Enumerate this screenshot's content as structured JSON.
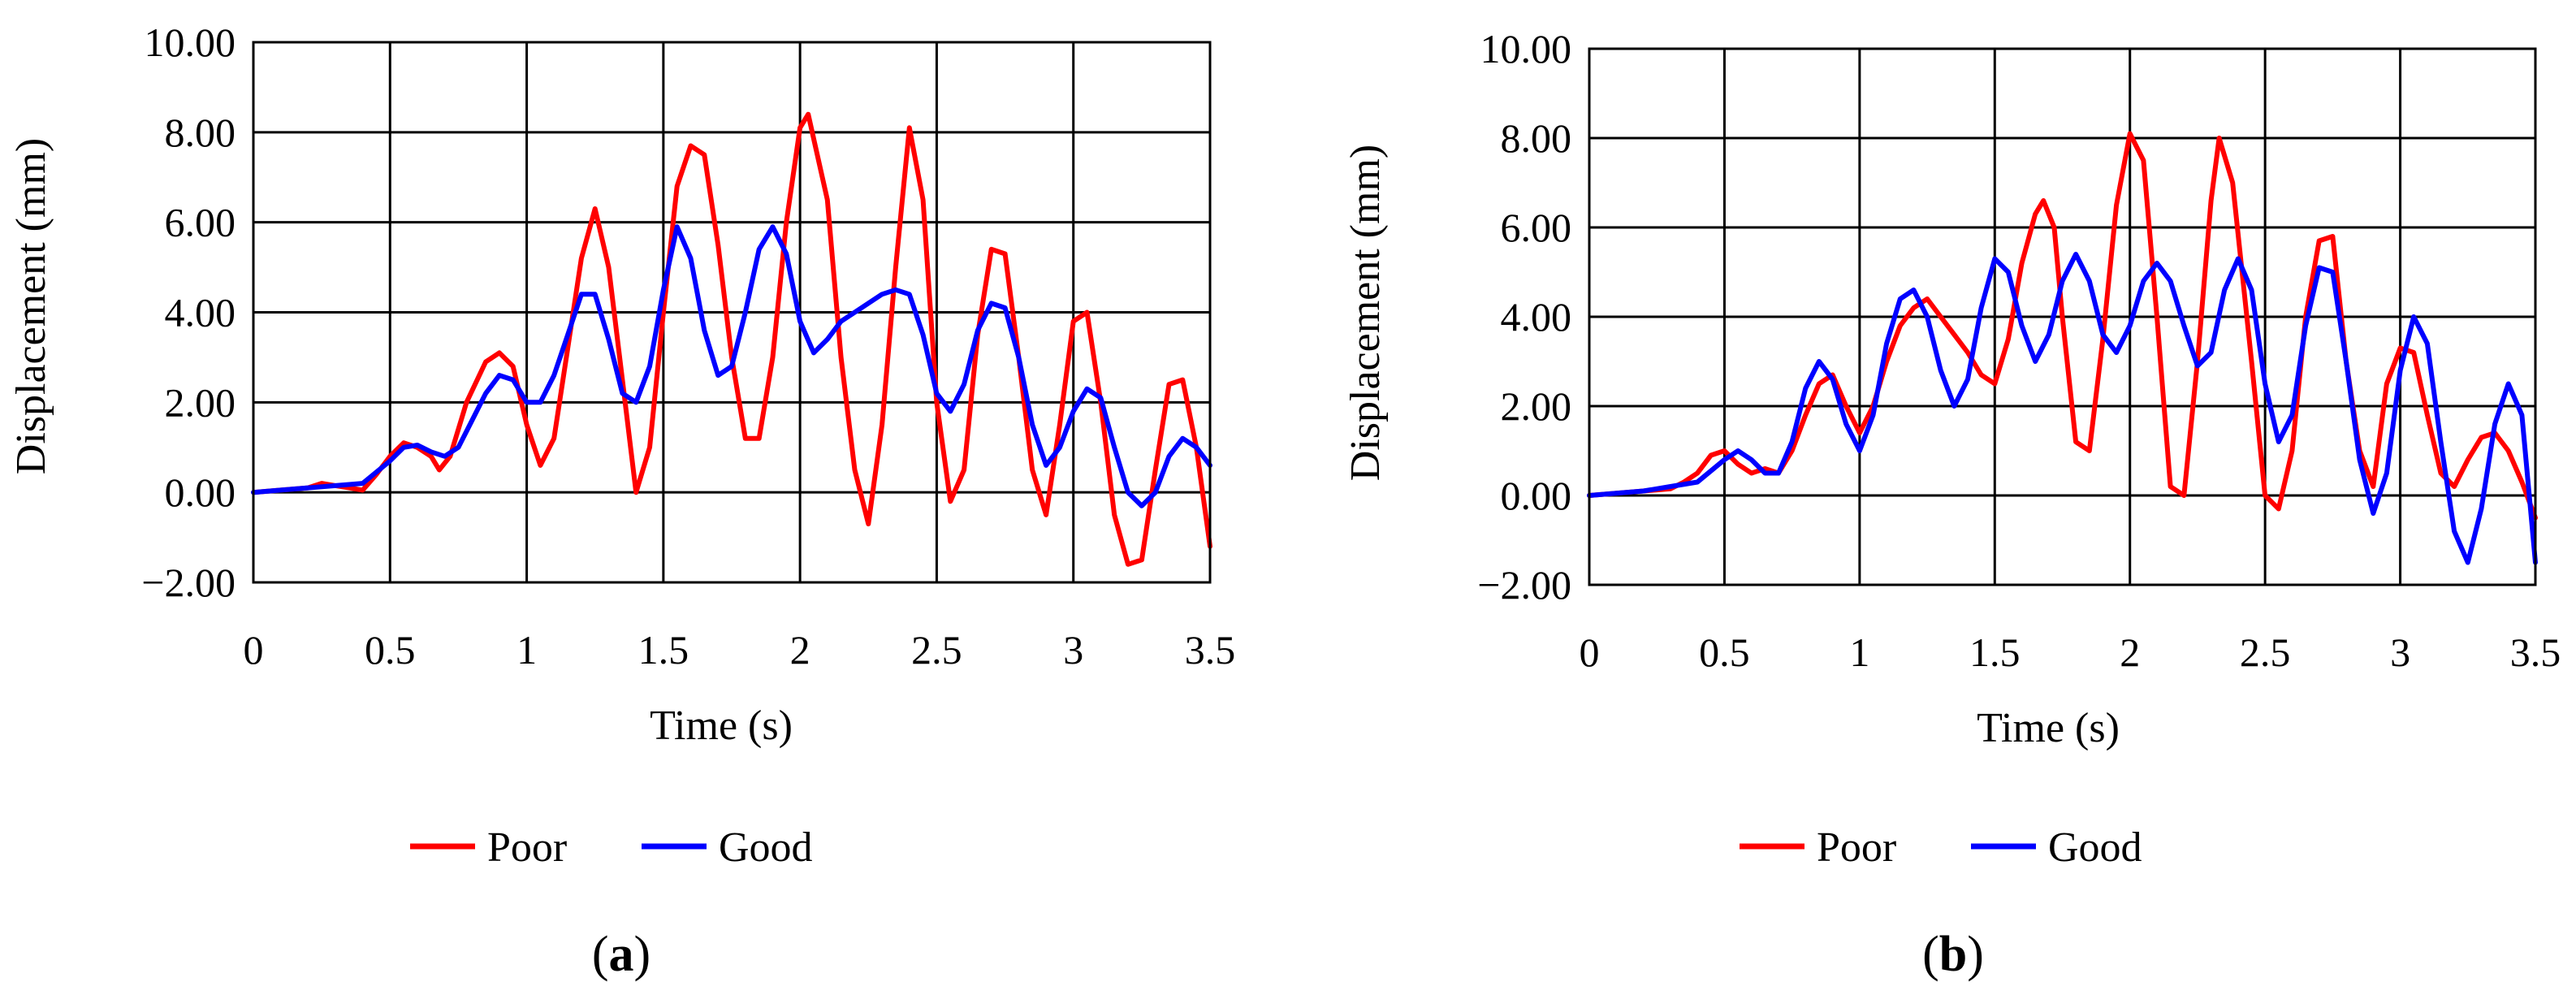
{
  "chart_data": [
    {
      "type": "line",
      "caption": {
        "open": "(",
        "letter": "a",
        "close": ")"
      },
      "xlabel": "Time (s)",
      "ylabel": "Displacement (mm)",
      "xlim": [
        0,
        3.5
      ],
      "ylim": [
        -2,
        10
      ],
      "x_ticks": [
        "0",
        "0.5",
        "1",
        "1.5",
        "2",
        "2.5",
        "3",
        "3.5"
      ],
      "y_ticks": [
        "−2.00",
        "0.00",
        "2.00",
        "4.00",
        "6.00",
        "8.00",
        "10.00"
      ],
      "grid": true,
      "legend_position": "bottom-center",
      "series": [
        {
          "name": "Poor",
          "color": "#ff0000",
          "x": [
            0.0,
            0.1,
            0.2,
            0.25,
            0.3,
            0.35,
            0.4,
            0.45,
            0.5,
            0.55,
            0.6,
            0.65,
            0.68,
            0.72,
            0.78,
            0.85,
            0.9,
            0.95,
            1.0,
            1.05,
            1.1,
            1.15,
            1.2,
            1.25,
            1.3,
            1.35,
            1.4,
            1.45,
            1.5,
            1.55,
            1.6,
            1.65,
            1.7,
            1.75,
            1.8,
            1.85,
            1.9,
            1.95,
            2.0,
            2.03,
            2.1,
            2.15,
            2.2,
            2.25,
            2.3,
            2.35,
            2.4,
            2.45,
            2.5,
            2.55,
            2.6,
            2.65,
            2.7,
            2.75,
            2.8,
            2.85,
            2.9,
            2.95,
            3.0,
            3.05,
            3.1,
            3.15,
            3.2,
            3.25,
            3.3,
            3.35,
            3.4,
            3.45,
            3.5
          ],
          "y": [
            0.0,
            0.05,
            0.1,
            0.2,
            0.15,
            0.1,
            0.05,
            0.4,
            0.8,
            1.1,
            1.0,
            0.8,
            0.5,
            0.8,
            2.0,
            2.9,
            3.1,
            2.8,
            1.5,
            0.6,
            1.2,
            3.2,
            5.2,
            6.3,
            5.0,
            2.5,
            0.0,
            1.0,
            4.0,
            6.8,
            7.7,
            7.5,
            5.5,
            3.0,
            1.2,
            1.2,
            3.0,
            6.0,
            8.1,
            8.4,
            6.5,
            3.0,
            0.5,
            -0.7,
            1.5,
            5.0,
            8.1,
            6.5,
            2.0,
            -0.2,
            0.5,
            3.5,
            5.4,
            5.3,
            3.0,
            0.5,
            -0.5,
            1.5,
            3.8,
            4.0,
            2.0,
            -0.5,
            -1.6,
            -1.5,
            0.5,
            2.4,
            2.5,
            1.0,
            -1.2
          ]
        },
        {
          "name": "Good",
          "color": "#0000ff",
          "x": [
            0.0,
            0.1,
            0.2,
            0.3,
            0.4,
            0.5,
            0.55,
            0.6,
            0.65,
            0.7,
            0.75,
            0.8,
            0.85,
            0.9,
            0.95,
            1.0,
            1.05,
            1.1,
            1.15,
            1.2,
            1.25,
            1.3,
            1.35,
            1.4,
            1.45,
            1.5,
            1.55,
            1.6,
            1.65,
            1.7,
            1.75,
            1.8,
            1.85,
            1.9,
            1.95,
            2.0,
            2.05,
            2.1,
            2.15,
            2.2,
            2.25,
            2.3,
            2.35,
            2.4,
            2.45,
            2.5,
            2.55,
            2.6,
            2.65,
            2.7,
            2.75,
            2.8,
            2.85,
            2.9,
            2.95,
            3.0,
            3.05,
            3.1,
            3.15,
            3.2,
            3.25,
            3.3,
            3.35,
            3.4,
            3.45,
            3.5
          ],
          "y": [
            0.0,
            0.05,
            0.1,
            0.15,
            0.2,
            0.7,
            1.0,
            1.05,
            0.9,
            0.8,
            1.0,
            1.6,
            2.2,
            2.6,
            2.5,
            2.0,
            2.0,
            2.6,
            3.5,
            4.4,
            4.4,
            3.4,
            2.2,
            2.0,
            2.8,
            4.5,
            5.9,
            5.2,
            3.6,
            2.6,
            2.8,
            4.0,
            5.4,
            5.9,
            5.3,
            3.8,
            3.1,
            3.4,
            3.8,
            4.0,
            4.2,
            4.4,
            4.5,
            4.4,
            3.5,
            2.2,
            1.8,
            2.4,
            3.6,
            4.2,
            4.1,
            3.0,
            1.5,
            0.6,
            1.0,
            1.8,
            2.3,
            2.1,
            1.0,
            0.0,
            -0.3,
            0.0,
            0.8,
            1.2,
            1.0,
            0.6
          ]
        }
      ]
    },
    {
      "type": "line",
      "caption": {
        "open": "(",
        "letter": "b",
        "close": ")"
      },
      "xlabel": "Time (s)",
      "ylabel": "Displacement (mm)",
      "xlim": [
        0,
        3.5
      ],
      "ylim": [
        -2,
        10
      ],
      "x_ticks": [
        "0",
        "0.5",
        "1",
        "1.5",
        "2",
        "2.5",
        "3",
        "3.5"
      ],
      "y_ticks": [
        "−2.00",
        "0.00",
        "2.00",
        "4.00",
        "6.00",
        "8.00",
        "10.00"
      ],
      "grid": true,
      "legend_position": "bottom-center",
      "series": [
        {
          "name": "Poor",
          "color": "#ff0000",
          "x": [
            0.0,
            0.1,
            0.2,
            0.3,
            0.35,
            0.4,
            0.45,
            0.5,
            0.55,
            0.6,
            0.65,
            0.7,
            0.75,
            0.8,
            0.85,
            0.9,
            0.95,
            1.0,
            1.05,
            1.1,
            1.15,
            1.2,
            1.25,
            1.3,
            1.35,
            1.4,
            1.45,
            1.5,
            1.55,
            1.6,
            1.65,
            1.68,
            1.72,
            1.75,
            1.8,
            1.85,
            1.9,
            1.95,
            2.0,
            2.05,
            2.1,
            2.15,
            2.2,
            2.25,
            2.3,
            2.33,
            2.38,
            2.45,
            2.5,
            2.55,
            2.6,
            2.65,
            2.7,
            2.75,
            2.8,
            2.85,
            2.9,
            2.95,
            3.0,
            3.05,
            3.1,
            3.15,
            3.2,
            3.25,
            3.3,
            3.35,
            3.4,
            3.45,
            3.5
          ],
          "y": [
            0.0,
            0.05,
            0.1,
            0.15,
            0.3,
            0.5,
            0.9,
            1.0,
            0.7,
            0.5,
            0.6,
            0.5,
            1.0,
            1.8,
            2.5,
            2.7,
            2.0,
            1.4,
            2.0,
            3.0,
            3.8,
            4.2,
            4.4,
            4.0,
            3.6,
            3.2,
            2.7,
            2.5,
            3.5,
            5.2,
            6.3,
            6.6,
            6.0,
            4.0,
            1.2,
            1.0,
            3.5,
            6.5,
            8.1,
            7.5,
            4.0,
            0.2,
            0.0,
            3.0,
            6.6,
            8.0,
            7.0,
            3.0,
            0.0,
            -0.3,
            1.0,
            4.0,
            5.7,
            5.8,
            3.0,
            1.0,
            0.2,
            2.5,
            3.3,
            3.2,
            1.8,
            0.5,
            0.2,
            0.8,
            1.3,
            1.4,
            1.0,
            0.3,
            -0.5
          ]
        },
        {
          "name": "Good",
          "color": "#0000ff",
          "x": [
            0.0,
            0.1,
            0.2,
            0.3,
            0.4,
            0.5,
            0.55,
            0.6,
            0.65,
            0.7,
            0.75,
            0.8,
            0.85,
            0.9,
            0.95,
            1.0,
            1.05,
            1.1,
            1.15,
            1.2,
            1.25,
            1.3,
            1.35,
            1.4,
            1.45,
            1.5,
            1.55,
            1.6,
            1.65,
            1.7,
            1.75,
            1.8,
            1.85,
            1.9,
            1.95,
            2.0,
            2.05,
            2.1,
            2.15,
            2.2,
            2.25,
            2.3,
            2.35,
            2.4,
            2.45,
            2.5,
            2.55,
            2.6,
            2.65,
            2.7,
            2.75,
            2.8,
            2.85,
            2.9,
            2.95,
            3.0,
            3.05,
            3.1,
            3.15,
            3.2,
            3.25,
            3.3,
            3.35,
            3.4,
            3.45,
            3.5
          ],
          "y": [
            0.0,
            0.05,
            0.1,
            0.2,
            0.3,
            0.8,
            1.0,
            0.8,
            0.5,
            0.5,
            1.2,
            2.4,
            3.0,
            2.6,
            1.6,
            1.0,
            1.8,
            3.4,
            4.4,
            4.6,
            4.0,
            2.8,
            2.0,
            2.6,
            4.2,
            5.3,
            5.0,
            3.8,
            3.0,
            3.6,
            4.8,
            5.4,
            4.8,
            3.6,
            3.2,
            3.8,
            4.8,
            5.2,
            4.8,
            3.8,
            2.9,
            3.2,
            4.6,
            5.3,
            4.6,
            2.5,
            1.2,
            1.8,
            3.8,
            5.1,
            5.0,
            3.0,
            0.8,
            -0.4,
            0.5,
            2.8,
            4.0,
            3.4,
            1.2,
            -0.8,
            -1.5,
            -0.3,
            1.6,
            2.5,
            1.8,
            -1.5
          ]
        }
      ]
    }
  ]
}
